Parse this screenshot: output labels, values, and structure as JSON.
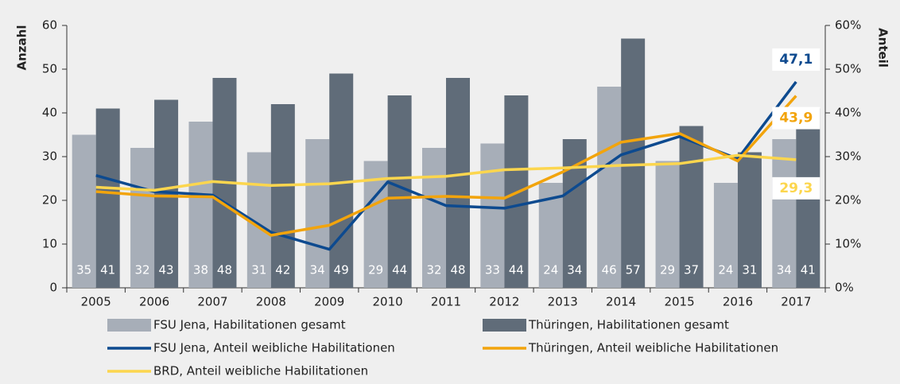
{
  "chart_data": {
    "type": "bar_line",
    "ylabel": "Anzahl",
    "y2label": "Anteil",
    "categories": [
      "2005",
      "2006",
      "2007",
      "2008",
      "2009",
      "2010",
      "2011",
      "2012",
      "2013",
      "2014",
      "2015",
      "2016",
      "2017"
    ],
    "ylim": [
      0,
      60
    ],
    "yticks": [
      0,
      10,
      20,
      30,
      40,
      50,
      60
    ],
    "y2lim": [
      0,
      60
    ],
    "y2ticks": [
      {
        "value": 0,
        "label": "0%"
      },
      {
        "value": 10,
        "label": "10%"
      },
      {
        "value": 20,
        "label": "20%"
      },
      {
        "value": 30,
        "label": "30%"
      },
      {
        "value": 40,
        "label": "40%"
      },
      {
        "value": 50,
        "label": "50%"
      },
      {
        "value": 60,
        "label": "60%"
      }
    ],
    "series": [
      {
        "name": "FSU Jena, Habilitationen gesamt",
        "kind": "bar",
        "color": "#a7aeb8",
        "values": [
          35,
          32,
          38,
          31,
          34,
          29,
          32,
          33,
          24,
          46,
          29,
          24,
          34
        ]
      },
      {
        "name": "Thüringen, Habilitationen gesamt",
        "kind": "bar",
        "color": "#606c79",
        "values": [
          41,
          43,
          48,
          42,
          49,
          44,
          48,
          44,
          34,
          57,
          37,
          31,
          41
        ]
      },
      {
        "name": "FSU Jena, Anteil weibliche Habilitationen",
        "kind": "line",
        "axis": "y2",
        "color": "#0d4a8f",
        "values": [
          25.7,
          22,
          21.2,
          12.7,
          8.8,
          24.2,
          18.8,
          18.2,
          21,
          30.4,
          34.6,
          29.5,
          47.1
        ],
        "value_labels": [
          null,
          null,
          null,
          null,
          null,
          null,
          null,
          null,
          null,
          null,
          null,
          null,
          "47,1"
        ]
      },
      {
        "name": "Thüringen, Anteil weibliche Habilitationen",
        "kind": "line",
        "axis": "y2",
        "color": "#f2a40c",
        "values": [
          22,
          21,
          20.8,
          12,
          14.3,
          20.5,
          20.9,
          20.5,
          26.5,
          33.3,
          35.3,
          29,
          43.9
        ],
        "value_labels": [
          null,
          null,
          null,
          null,
          null,
          null,
          null,
          null,
          null,
          null,
          null,
          null,
          "43,9"
        ]
      },
      {
        "name": "BRD, Anteil weibliche Habilitationen",
        "kind": "line",
        "axis": "y2",
        "color": "#fcd64e",
        "values": [
          23,
          22.3,
          24.3,
          23.4,
          23.8,
          25,
          25.5,
          27,
          27.4,
          28,
          28.4,
          30.3,
          29.3
        ],
        "value_labels": [
          null,
          null,
          null,
          null,
          null,
          null,
          null,
          null,
          null,
          null,
          null,
          null,
          "29,3"
        ]
      }
    ]
  }
}
